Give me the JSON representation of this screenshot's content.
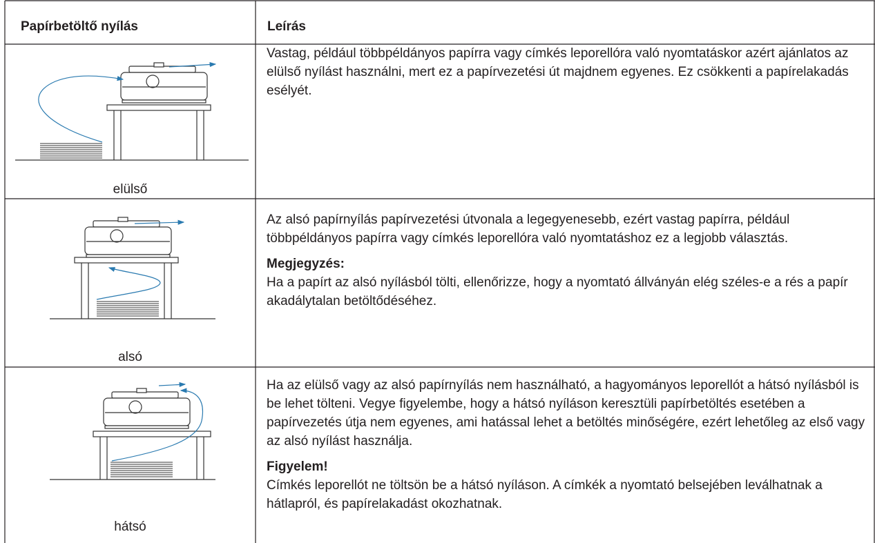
{
  "table": {
    "header": [
      "Papírbetöltő nyílás",
      "Leírás"
    ],
    "rows": [
      {
        "label": "elülső",
        "text": "Vastag, például többpéldányos papírra vagy címkés leporellóra való nyomtatáskor azért ajánlatos az elülső nyílást használni, mert ez a papírvezetési út majdnem egyenes. Ez csökkenti a papírelakadás esélyét."
      },
      {
        "label": "alsó",
        "text": "Az alsó papírnyílás papírvezetési útvonala a legegyenesebb, ezért vastag papírra, például többpéldányos papírra vagy címkés leporellóra való nyomtatáshoz ez a legjobb választás.",
        "note": {
          "title": "Megjegyzés:",
          "text": "Ha a papírt az alsó nyílásból tölti, ellenőrizze, hogy a nyomtató állványán elég széles-e a rés a papír akadálytalan betöltődéséhez."
        }
      },
      {
        "label": "hátsó",
        "text": "Ha az elülső vagy az alsó papírnyílás nem használható, a hagyományos leporellót a hátsó nyílásból is be lehet tölteni. Vegye figyelembe, hogy a hátsó nyíláson keresztüli papírbetöltés esetében a papírvezetés útja nem egyenes, ami hatással lehet a betöltés minőségére, ezért lehetőleg az első vagy az alsó nyílást használja.",
        "note": {
          "title": "Figyelem!",
          "text": "Címkés leporellót ne töltsön be a hátsó nyíláson. A címkék a nyomtató belsejében leválhatnak a hátlapról, és papírelakadást okozhatnak."
        }
      }
    ]
  }
}
